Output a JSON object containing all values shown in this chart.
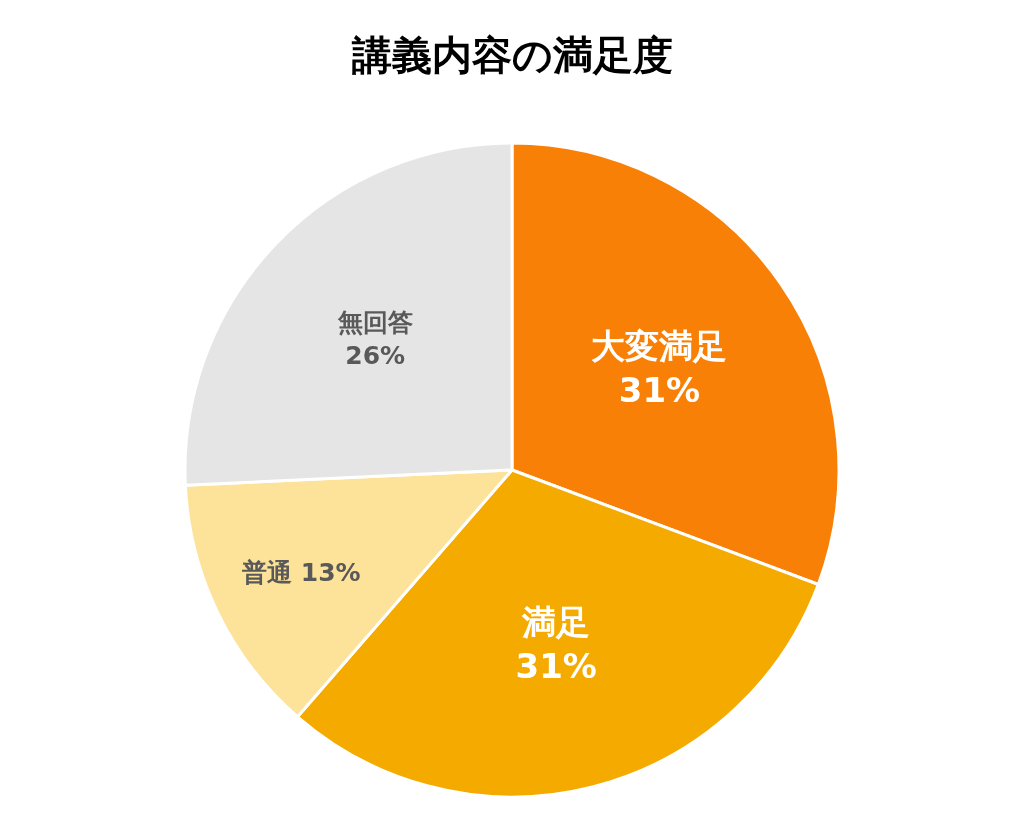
{
  "chart_data": {
    "type": "pie",
    "title": "講義内容の満足度",
    "categories": [
      "大変満足",
      "満足",
      "普通",
      "無回答"
    ],
    "values": [
      31,
      31,
      13,
      26
    ],
    "value_labels": [
      "31%",
      "31%",
      "13%",
      "26%"
    ],
    "colors": [
      "#f98006",
      "#f5aa00",
      "#fde29a",
      "#e5e5e5"
    ],
    "legend": false
  }
}
